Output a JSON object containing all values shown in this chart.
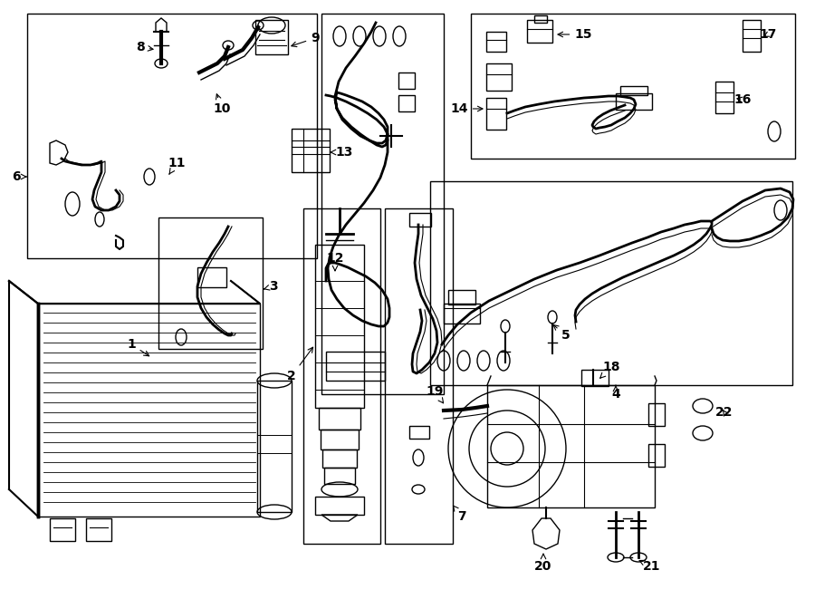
{
  "bg_color": "#ffffff",
  "line_color": "#000000",
  "fig_width": 9.0,
  "fig_height": 6.61,
  "dpi": 100,
  "font_size": 10,
  "lw": 1.0
}
